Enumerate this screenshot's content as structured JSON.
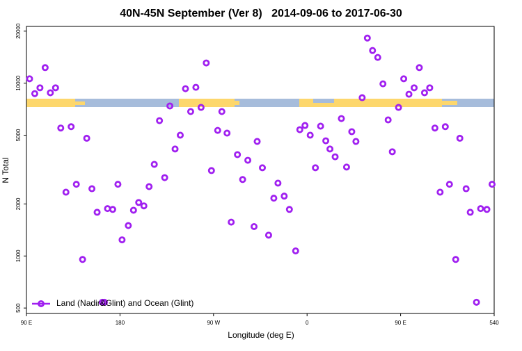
{
  "chart_data": {
    "type": "scatter",
    "title": "40N-45N September (Ver 8)   2014-09-06 to 2017-06-30",
    "x_label": "Longitude (deg E)",
    "y_label": "N Total",
    "xlim": [
      90,
      540
    ],
    "ylim": [
      465,
      21300
    ],
    "log_y": true,
    "legend": "bottom-left",
    "xticks": [
      {
        "value": 90,
        "label": "90 E"
      },
      180,
      {
        "value": 270,
        "label": "90 W"
      },
      {
        "value": 360,
        "label": "0"
      },
      {
        "value": 450,
        "label": "90 E"
      },
      540
    ],
    "yticks": [
      500,
      1000,
      2000,
      5000,
      10000,
      20000
    ],
    "series": [
      {
        "name": "Land (Nadir&Glint) and Ocean (Glint)",
        "color": "#a020f0",
        "x": [
          93,
          98,
          103,
          108,
          113,
          118,
          123,
          128,
          133,
          138,
          144,
          148,
          153,
          158,
          163,
          165,
          168,
          173,
          178,
          182,
          188,
          193,
          198,
          203,
          208,
          213,
          218,
          223,
          228,
          233,
          238,
          243,
          248,
          253,
          258,
          263,
          268,
          274,
          278,
          283,
          287,
          293,
          298,
          303,
          309,
          312,
          317,
          323,
          328,
          332,
          338,
          343,
          349,
          353,
          358,
          363,
          368,
          373,
          378,
          382,
          387,
          393,
          398,
          403,
          407,
          413,
          418,
          423,
          428,
          433,
          438,
          442,
          448,
          453,
          458,
          463,
          468,
          473,
          478,
          483,
          488,
          493,
          497,
          503,
          507,
          513,
          517,
          523,
          527,
          533,
          538
        ],
        "values": [
          10600,
          8700,
          9400,
          12300,
          8800,
          9400,
          5500,
          2340,
          5600,
          2600,
          955,
          4800,
          2450,
          1790,
          540,
          540,
          1880,
          1860,
          2600,
          1240,
          1500,
          1840,
          2040,
          1950,
          2520,
          3390,
          6070,
          2840,
          7380,
          4160,
          5000,
          9290,
          6850,
          9460,
          7240,
          13090,
          3120,
          5330,
          6850,
          5140,
          1570,
          3860,
          2770,
          3580,
          1480,
          4600,
          3240,
          1320,
          2160,
          2640,
          2220,
          1860,
          1070,
          5380,
          5690,
          5000,
          3240,
          5640,
          4640,
          4160,
          3750,
          6240,
          3270,
          5240,
          4600,
          8240,
          18240,
          15450,
          14090,
          9910,
          6130,
          4010,
          7240,
          10600,
          8630,
          9400,
          12300,
          8800,
          9400,
          5500,
          2340,
          5600,
          2600,
          955,
          4800,
          2450,
          1790,
          540,
          1880,
          1860,
          2600
        ]
      }
    ]
  }
}
